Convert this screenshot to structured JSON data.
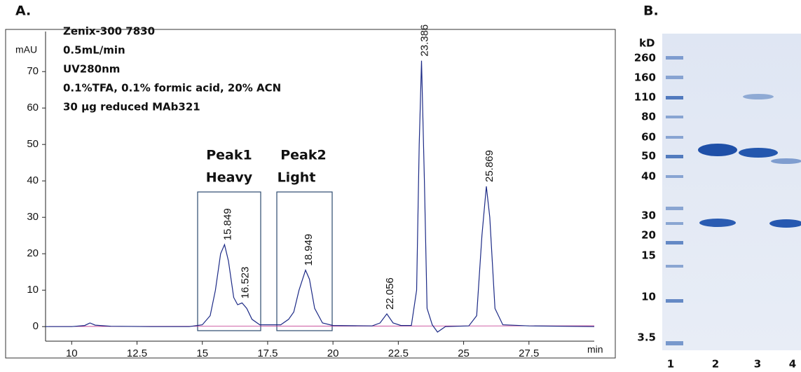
{
  "chart_data": {
    "type": "line",
    "title": "A.",
    "y_label": "mAU",
    "x_label": "min",
    "method": [
      "Zenix-300 7830",
      "0.5mL/min",
      "UV280nm",
      "0.1%TFA, 0.1% formic acid, 20% ACN",
      "30 μg reduced MAb321"
    ],
    "regions": [
      {
        "name": "Peak1",
        "sub": "Heavy"
      },
      {
        "name": "Peak2",
        "sub": "Light"
      }
    ],
    "x": [
      9.0,
      10.0,
      10.5,
      10.7,
      10.9,
      11.5,
      13.0,
      14.5,
      15.0,
      15.3,
      15.5,
      15.7,
      15.85,
      16.0,
      16.2,
      16.35,
      16.52,
      16.7,
      16.9,
      17.2,
      18.0,
      18.3,
      18.5,
      18.7,
      18.95,
      19.1,
      19.3,
      19.6,
      20.0,
      21.5,
      21.8,
      22.06,
      22.3,
      22.6,
      23.0,
      23.2,
      23.3,
      23.39,
      23.5,
      23.6,
      23.8,
      24.0,
      24.3,
      25.2,
      25.5,
      25.7,
      25.87,
      26.0,
      26.2,
      26.5,
      27.5,
      30.0
    ],
    "series": [
      {
        "color": "#1c2a86",
        "values": [
          0,
          0,
          0.3,
          1.0,
          0.4,
          0.1,
          0,
          0,
          0.5,
          3,
          10,
          20,
          22.5,
          18,
          8,
          6,
          6.5,
          5,
          2,
          0.5,
          0.5,
          2,
          4,
          10,
          15.5,
          13,
          5,
          1,
          0.3,
          0.2,
          1,
          3.5,
          1,
          0.3,
          0.3,
          10,
          50,
          73,
          40,
          5,
          0.5,
          -1.5,
          0,
          0.2,
          3,
          25,
          38.5,
          30,
          5,
          0.5,
          0.2,
          0
        ]
      }
    ],
    "peaks": [
      {
        "time": 15.849,
        "height": 22.5
      },
      {
        "time": 16.523,
        "height": 6.5
      },
      {
        "time": 18.949,
        "height": 15.5
      },
      {
        "time": 22.056,
        "height": 3.5
      },
      {
        "time": 23.386,
        "height": 73
      },
      {
        "time": 25.869,
        "height": 38.5
      }
    ],
    "xlim": [
      9,
      30
    ],
    "ylim": [
      -4,
      81
    ],
    "xticks": [
      10,
      12.5,
      15,
      17.5,
      20,
      22.5,
      25,
      27.5
    ],
    "yticks": [
      0,
      10,
      20,
      30,
      40,
      50,
      60,
      70
    ]
  },
  "gel": {
    "title": "B.",
    "unit": "kD",
    "markers": [
      260,
      160,
      110,
      80,
      60,
      50,
      40,
      30,
      20,
      15,
      10,
      3.5
    ],
    "lanes": [
      "1",
      "2",
      "3",
      "4"
    ]
  }
}
